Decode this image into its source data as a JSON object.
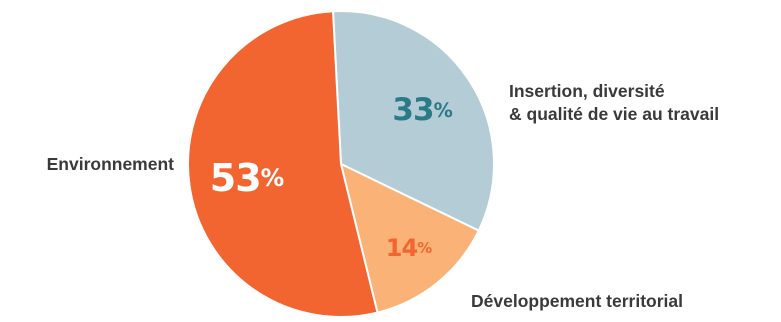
{
  "chart_data": {
    "type": "pie",
    "title": "",
    "slices": [
      {
        "label": [
          "Insertion, diversité",
          "& qualité de vie au travail"
        ],
        "value": 33,
        "value_label": "33",
        "color": "#b3ccd6",
        "value_color": "#2a7a88"
      },
      {
        "label": [
          "Développement territorial"
        ],
        "value": 14,
        "value_label": "14",
        "color": "#fbb277",
        "value_color": "#f26531"
      },
      {
        "label": [
          "Environnement"
        ],
        "value": 53,
        "value_label": "53",
        "color": "#f26531",
        "value_color": "#ffffff"
      }
    ],
    "percent_symbol": "%",
    "start_angle_deg": -3,
    "direction": "clockwise",
    "legend": "none"
  }
}
